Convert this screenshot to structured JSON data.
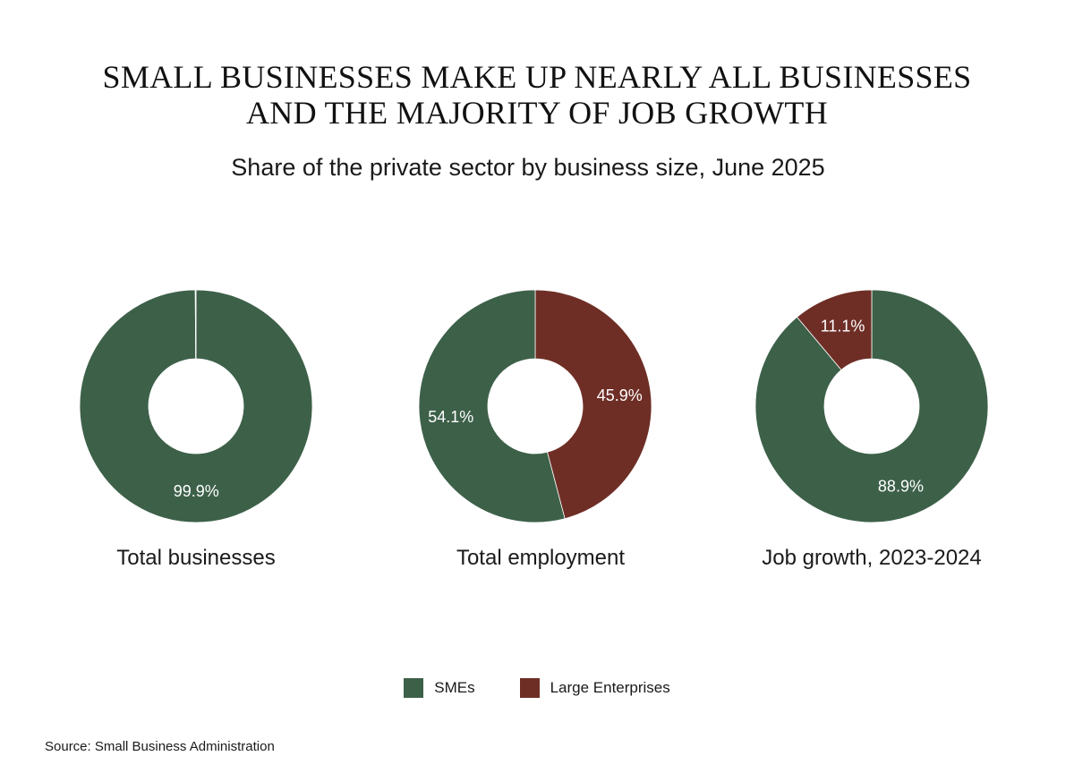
{
  "title": {
    "line1": "SMALL BUSINESSES MAKE UP NEARLY ALL BUSINESSES",
    "line2": "AND THE MAJORITY OF JOB GROWTH"
  },
  "subtitle": "Share of the private sector by business size, June 2025",
  "colors": {
    "smes": "#3d6049",
    "large": "#6e2e26"
  },
  "chart_data": [
    {
      "type": "pie",
      "title": "Total businesses",
      "slices": [
        {
          "name": "SMEs",
          "value": 99.9,
          "label": "99.9%"
        },
        {
          "name": "Large Enterprises",
          "value": 0.1,
          "label": ""
        }
      ]
    },
    {
      "type": "pie",
      "title": "Total employment",
      "slices": [
        {
          "name": "SMEs",
          "value": 54.1,
          "label": "54.1%"
        },
        {
          "name": "Large Enterprises",
          "value": 45.9,
          "label": "45.9%"
        }
      ]
    },
    {
      "type": "pie",
      "title": "Job growth, 2023-2024",
      "slices": [
        {
          "name": "SMEs",
          "value": 88.9,
          "label": "88.9%"
        },
        {
          "name": "Large Enterprises",
          "value": 11.1,
          "label": "11.1%"
        }
      ]
    }
  ],
  "legend": [
    {
      "label": "SMEs",
      "color": "#3d6049"
    },
    {
      "label": "Large Enterprises",
      "color": "#6e2e26"
    }
  ],
  "source": "Source: Small Business Administration"
}
